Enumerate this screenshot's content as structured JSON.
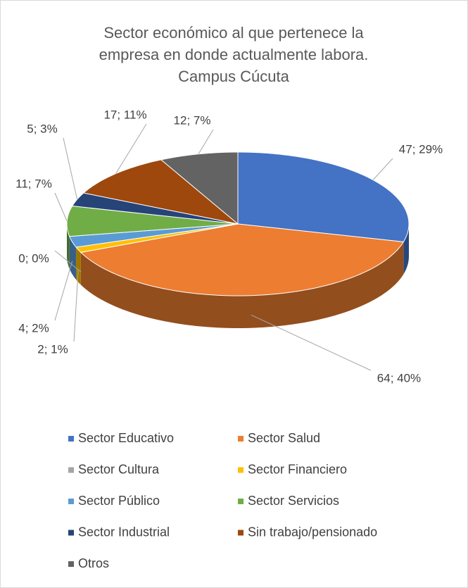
{
  "chart_data": {
    "type": "pie3d",
    "title": [
      "Sector económico al que pertenece la",
      "empresa en donde actualmente labora.",
      "Campus Cúcuta"
    ],
    "categories": [
      "Sector Educativo",
      "Sector Salud",
      "Sector Cultura",
      "Sector Financiero",
      "Sector Público",
      "Sector Servicios",
      "Sector Industrial",
      "Sin trabajo/pensionado",
      "Otros"
    ],
    "values": [
      47,
      64,
      0,
      2,
      4,
      11,
      5,
      17,
      12
    ],
    "value_labels": [
      "47; 29%",
      "64; 40%",
      "0; 0%",
      "2; 1%",
      "4; 2%",
      "11; 7%",
      "5; 3%",
      "17; 11%",
      "12; 7%"
    ],
    "colors": [
      "#4472c4",
      "#ed7d31",
      "#a5a5a5",
      "#ffc000",
      "#5b9bd5",
      "#70ad47",
      "#264478",
      "#9e480e",
      "#636363"
    ],
    "legend": "bottom"
  }
}
